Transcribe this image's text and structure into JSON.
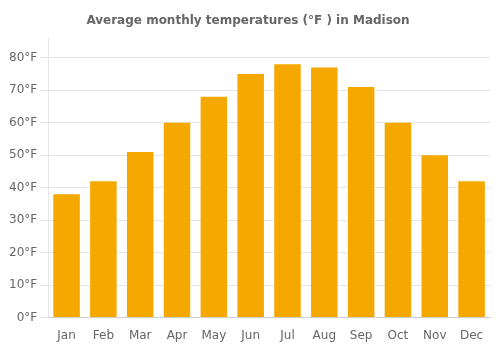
{
  "chart_data": {
    "type": "bar",
    "title": "Average monthly temperatures (°F ) in Madison",
    "categories": [
      "Jan",
      "Feb",
      "Mar",
      "Apr",
      "May",
      "Jun",
      "Jul",
      "Aug",
      "Sep",
      "Oct",
      "Nov",
      "Dec"
    ],
    "values": [
      38,
      42,
      51,
      60,
      68,
      75,
      78,
      77,
      71,
      60,
      50,
      42
    ],
    "color": "#F5A800",
    "ylim": [
      0,
      86
    ],
    "yticks": [
      {
        "value": 0,
        "label": "0°F"
      },
      {
        "value": 10,
        "label": "10°F"
      },
      {
        "value": 20,
        "label": "20°F"
      },
      {
        "value": 30,
        "label": "30°F"
      },
      {
        "value": 40,
        "label": "40°F"
      },
      {
        "value": 50,
        "label": "50°F"
      },
      {
        "value": 60,
        "label": "60°F"
      },
      {
        "value": 70,
        "label": "70°F"
      },
      {
        "value": 80,
        "label": "80°F"
      }
    ],
    "grid": true
  }
}
